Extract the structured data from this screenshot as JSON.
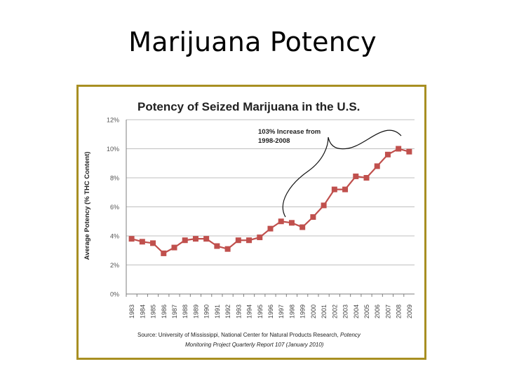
{
  "slide": {
    "title": "Marijuana Potency"
  },
  "colors": {
    "frame": "#a88f22",
    "series": "#c0504d",
    "grid": "#bfbfbf",
    "axis": "#7f7f7f"
  },
  "chart_data": {
    "type": "line",
    "title": "Potency of Seized Marijuana in the U.S.",
    "xlabel": "",
    "ylabel": "Average Potency (% THC Content)",
    "ylim": [
      0,
      12
    ],
    "yticks": [
      0,
      2,
      4,
      6,
      8,
      10,
      12
    ],
    "ytick_labels": [
      "0%",
      "2%",
      "4%",
      "6%",
      "8%",
      "10%",
      "12%"
    ],
    "grid": true,
    "categories": [
      "1983",
      "1984",
      "1985",
      "1986",
      "1987",
      "1988",
      "1989",
      "1990",
      "1991",
      "1992",
      "1993",
      "1994",
      "1995",
      "1996",
      "1997",
      "1998",
      "1999",
      "2000",
      "2001",
      "2002",
      "2003",
      "2004",
      "2005",
      "2006",
      "2007",
      "2008",
      "2009"
    ],
    "series": [
      {
        "name": "Average Potency",
        "values": [
          3.8,
          3.6,
          3.5,
          2.8,
          3.2,
          3.7,
          3.8,
          3.8,
          3.3,
          3.1,
          3.7,
          3.7,
          3.9,
          4.5,
          5.0,
          4.9,
          4.6,
          5.3,
          6.1,
          7.2,
          7.2,
          8.1,
          8.0,
          8.8,
          9.6,
          10.0,
          9.8
        ]
      }
    ],
    "annotation": {
      "line1": "103% Increase from",
      "line2": "1998-2008"
    },
    "source": {
      "line1_plain": "Source: University of Mississippi, National Center for Natural Products Research, ",
      "line1_italic": "Potency",
      "line2_italic": "Monitoring Project Quarterly Report 107 (January 2010)"
    }
  }
}
